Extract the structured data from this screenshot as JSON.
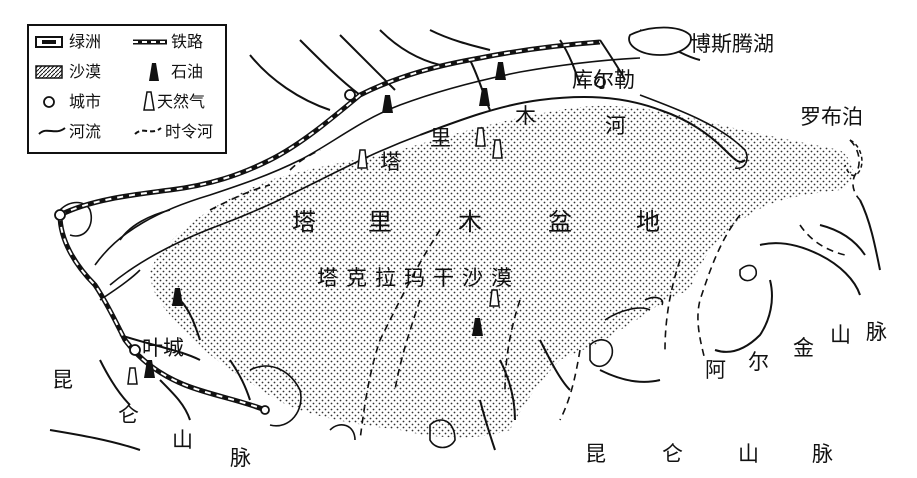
{
  "map": {
    "legend": {
      "oasis": "绿洲",
      "railway": "铁路",
      "desert": "沙漠",
      "oil": "石油",
      "city": "城市",
      "gas": "天然气",
      "river": "河流",
      "seasonal_river": "时令河"
    },
    "labels": {
      "bosten_lake": "博斯腾湖",
      "korla": "库尔勒",
      "lop_nur": "罗布泊",
      "tarim_river": [
        "塔",
        "里",
        "木",
        "河"
      ],
      "tarim_basin": [
        "塔",
        "里",
        "木",
        "盆",
        "地"
      ],
      "taklimakan": "塔克拉玛干沙漠",
      "kashgar_city": "叶城",
      "altun": [
        "阿",
        "尔",
        "金",
        "山",
        "脉"
      ],
      "kunlun_left": [
        "昆",
        "仑",
        "山",
        "脉"
      ],
      "kunlun_bottom": [
        "昆",
        "仑",
        "山",
        "脉"
      ]
    },
    "colors": {
      "ink": "#111111",
      "background": "#ffffff"
    }
  }
}
